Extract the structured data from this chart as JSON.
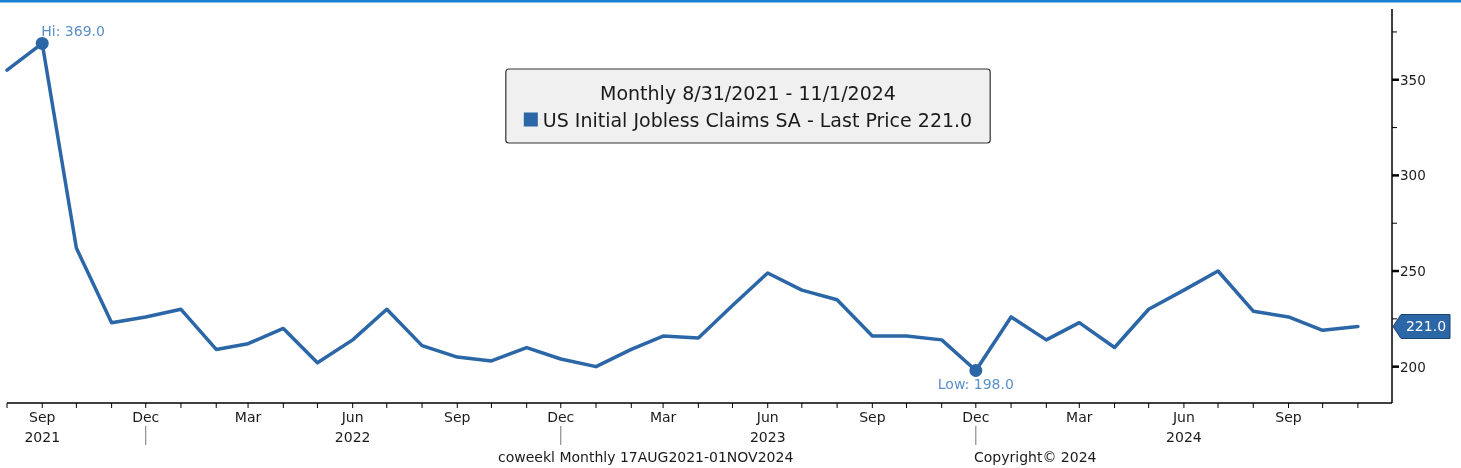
{
  "chart_data": {
    "type": "line",
    "legend_title": "Monthly 8/31/2021 - 11/1/2024",
    "legend": "top",
    "x": [
      "2021-08",
      "2021-09",
      "2021-10",
      "2021-11",
      "2021-12",
      "2022-01",
      "2022-02",
      "2022-03",
      "2022-04",
      "2022-05",
      "2022-06",
      "2022-07",
      "2022-08",
      "2022-09",
      "2022-10",
      "2022-11",
      "2022-12",
      "2023-01",
      "2023-02",
      "2023-03",
      "2023-04",
      "2023-05",
      "2023-06",
      "2023-07",
      "2023-08",
      "2023-09",
      "2023-10",
      "2023-11",
      "2023-12",
      "2024-01",
      "2024-02",
      "2024-03",
      "2024-04",
      "2024-05",
      "2024-06",
      "2024-07",
      "2024-08",
      "2024-09",
      "2024-10",
      "2024-11"
    ],
    "series": [
      {
        "name": "US Initial Jobless Claims SA - Last Price 221.0",
        "color": "#2b66a6",
        "values": [
          355,
          369,
          262,
          223,
          226,
          230,
          209,
          212,
          220,
          202,
          214,
          230,
          211,
          205,
          203,
          210,
          204,
          200,
          209,
          216,
          215,
          232,
          249,
          240,
          235,
          216,
          216,
          214,
          198,
          226,
          214,
          223,
          210,
          230,
          240,
          250,
          229,
          226,
          219,
          221
        ],
        "value_labels": [
          null,
          "Hi: 369.0",
          null,
          null,
          null,
          null,
          null,
          null,
          null,
          null,
          null,
          null,
          null,
          null,
          null,
          null,
          null,
          null,
          null,
          null,
          null,
          null,
          null,
          null,
          null,
          null,
          null,
          null,
          "Low: 198.0",
          null,
          null,
          null,
          null,
          null,
          null,
          null,
          null,
          null,
          null,
          null
        ]
      }
    ],
    "xlim": [
      "2021-08",
      "2024-12"
    ],
    "xticks": [
      {
        "value": "2021-08",
        "label": null
      },
      {
        "value": "2021-09",
        "label": "Sep\n2021"
      },
      {
        "value": "2021-10",
        "label": null
      },
      {
        "value": "2021-11",
        "label": null
      },
      {
        "value": "2021-12",
        "label": "Dec"
      },
      {
        "value": "2022-01",
        "label": null
      },
      {
        "value": "2022-02",
        "label": null
      },
      {
        "value": "2022-03",
        "label": "Mar"
      },
      {
        "value": "2022-04",
        "label": null
      },
      {
        "value": "2022-05",
        "label": null
      },
      {
        "value": "2022-06",
        "label": "Jun\n2022"
      },
      {
        "value": "2022-07",
        "label": null
      },
      {
        "value": "2022-08",
        "label": null
      },
      {
        "value": "2022-09",
        "label": "Sep"
      },
      {
        "value": "2022-10",
        "label": null
      },
      {
        "value": "2022-11",
        "label": null
      },
      {
        "value": "2022-12",
        "label": "Dec"
      },
      {
        "value": "2023-01",
        "label": null
      },
      {
        "value": "2023-02",
        "label": null
      },
      {
        "value": "2023-03",
        "label": "Mar"
      },
      {
        "value": "2023-04",
        "label": null
      },
      {
        "value": "2023-05",
        "label": null
      },
      {
        "value": "2023-06",
        "label": "Jun\n2023"
      },
      {
        "value": "2023-07",
        "label": null
      },
      {
        "value": "2023-08",
        "label": null
      },
      {
        "value": "2023-09",
        "label": "Sep"
      },
      {
        "value": "2023-10",
        "label": null
      },
      {
        "value": "2023-11",
        "label": null
      },
      {
        "value": "2023-12",
        "label": "Dec"
      },
      {
        "value": "2024-01",
        "label": null
      },
      {
        "value": "2024-02",
        "label": null
      },
      {
        "value": "2024-03",
        "label": "Mar"
      },
      {
        "value": "2024-04",
        "label": null
      },
      {
        "value": "2024-05",
        "label": null
      },
      {
        "value": "2024-06",
        "label": "Jun\n2024"
      },
      {
        "value": "2024-07",
        "label": null
      },
      {
        "value": "2024-08",
        "label": null
      },
      {
        "value": "2024-09",
        "label": "Sep"
      },
      {
        "value": "2024-10",
        "label": null
      },
      {
        "value": "2024-11",
        "label": null
      }
    ],
    "ylim": [
      181,
      387
    ],
    "yticks": [
      200,
      {
        "value": 225,
        "label": null
      },
      250,
      {
        "value": 275,
        "label": null
      },
      300,
      {
        "value": 325,
        "label": null
      },
      350,
      {
        "value": 375,
        "label": null
      }
    ],
    "annotations": [
      "221.0",
      "coweekl Monthly 17AUG2021-01NOV2024",
      "Copyright© 2024"
    ]
  }
}
